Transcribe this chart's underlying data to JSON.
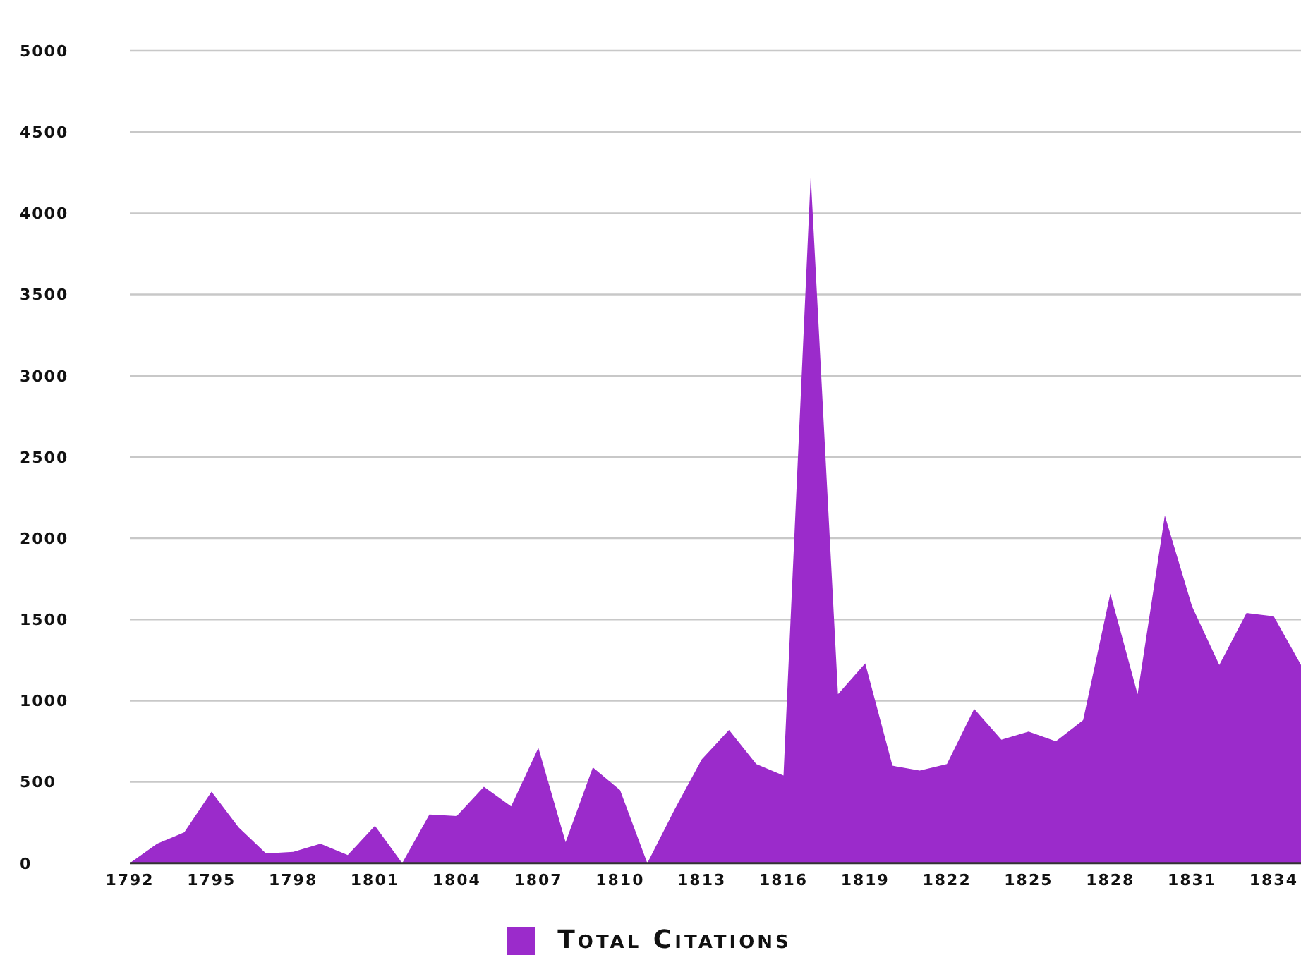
{
  "chart_data": {
    "type": "area",
    "x": [
      1792,
      1793,
      1794,
      1795,
      1796,
      1797,
      1798,
      1799,
      1800,
      1801,
      1802,
      1803,
      1804,
      1805,
      1806,
      1807,
      1808,
      1809,
      1810,
      1811,
      1812,
      1813,
      1814,
      1815,
      1816,
      1817,
      1818,
      1819,
      1820,
      1821,
      1822,
      1823,
      1824,
      1825,
      1826,
      1827,
      1828,
      1829,
      1830,
      1831,
      1832,
      1833,
      1834,
      1835
    ],
    "series": [
      {
        "name": "Total Citations",
        "color": "#9b2bcb",
        "values": [
          0,
          120,
          190,
          440,
          220,
          60,
          70,
          120,
          50,
          230,
          0,
          300,
          290,
          470,
          350,
          710,
          130,
          590,
          450,
          0,
          330,
          640,
          820,
          610,
          540,
          4230,
          1040,
          1230,
          600,
          570,
          610,
          950,
          760,
          810,
          750,
          880,
          1660,
          1040,
          2140,
          1580,
          1220,
          1540,
          1520,
          1220
        ]
      }
    ],
    "xlim": [
      1792,
      1835
    ],
    "xticks": [
      1792,
      1795,
      1798,
      1801,
      1804,
      1807,
      1810,
      1813,
      1816,
      1819,
      1822,
      1825,
      1828,
      1831,
      1834
    ],
    "ylim": [
      0,
      5000
    ],
    "yticks": [
      0,
      500,
      1000,
      1500,
      2000,
      2500,
      3000,
      3500,
      4000,
      4500,
      5000
    ],
    "grid": "y",
    "legend": "bottom"
  }
}
